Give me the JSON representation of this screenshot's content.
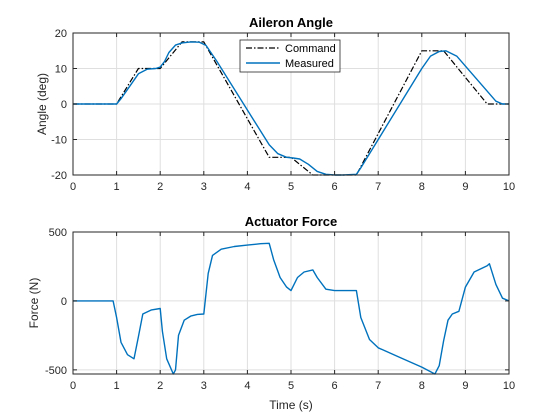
{
  "chart_data": [
    {
      "type": "line",
      "title": "Aileron Angle",
      "xlabel": "",
      "ylabel": "Angle (deg)",
      "xlim": [
        0,
        10
      ],
      "ylim": [
        -20,
        20
      ],
      "xticks": [
        "0",
        "1",
        "2",
        "3",
        "4",
        "5",
        "6",
        "7",
        "8",
        "9",
        "10"
      ],
      "yticks": [
        "-20",
        "-10",
        "0",
        "10",
        "20"
      ],
      "grid": true,
      "legend": "top-center",
      "series": [
        {
          "name": "Command",
          "style": "dashdot",
          "color": "#000000",
          "x": [
            0,
            1,
            1.5,
            2,
            2.5,
            3,
            4.5,
            5,
            5.5,
            6,
            6.5,
            8,
            8.5,
            9.5,
            10
          ],
          "y": [
            0,
            0,
            10,
            10,
            17.5,
            17.5,
            -15,
            -15,
            -20,
            -20,
            -20,
            15,
            15,
            0,
            0
          ]
        },
        {
          "name": "Measured",
          "style": "solid",
          "color": "#0072BD",
          "x": [
            0,
            1,
            1.1,
            1.3,
            1.5,
            1.7,
            1.9,
            2.0,
            2.1,
            2.2,
            2.35,
            2.5,
            2.7,
            2.9,
            3.05,
            3.3,
            4.5,
            4.7,
            4.9,
            5.05,
            5.2,
            5.4,
            5.6,
            5.8,
            6.0,
            6.2,
            6.5,
            6.6,
            8.0,
            8.2,
            8.4,
            8.55,
            8.8,
            9.7,
            9.85,
            10
          ],
          "y": [
            0,
            0,
            1.5,
            5,
            8.5,
            9.8,
            10,
            10.4,
            12,
            14.5,
            16.6,
            17.2,
            17.5,
            17.4,
            16.5,
            12,
            -11.5,
            -14,
            -15,
            -15.2,
            -15.5,
            -17,
            -19,
            -19.8,
            -20,
            -20,
            -19.8,
            -18,
            10,
            13.5,
            14.8,
            15,
            13.5,
            0.8,
            0,
            0
          ]
        }
      ]
    },
    {
      "type": "line",
      "title": "Actuator Force",
      "xlabel": "Time (s)",
      "ylabel": "Force (N)",
      "xlim": [
        0,
        10
      ],
      "ylim": [
        -530,
        500
      ],
      "xticks": [
        "0",
        "1",
        "2",
        "3",
        "4",
        "5",
        "6",
        "7",
        "8",
        "9",
        "10"
      ],
      "yticks": [
        "-500",
        "0",
        "500"
      ],
      "grid": true,
      "series": [
        {
          "color": "#0072BD",
          "x": [
            0,
            0.92,
            1.0,
            1.1,
            1.25,
            1.4,
            1.5,
            1.6,
            1.8,
            2.0,
            2.05,
            2.15,
            2.3,
            2.35,
            2.42,
            2.55,
            2.7,
            2.85,
            3.0,
            3.1,
            3.2,
            3.4,
            3.7,
            4.0,
            4.3,
            4.5,
            4.6,
            4.75,
            4.9,
            5.0,
            5.15,
            5.3,
            5.5,
            5.6,
            5.8,
            6.0,
            6.5,
            6.6,
            6.8,
            7.0,
            7.5,
            8.0,
            8.3,
            8.4,
            8.5,
            8.6,
            8.7,
            8.85,
            9.0,
            9.2,
            9.5,
            9.55,
            9.7,
            9.85,
            10
          ],
          "y": [
            0,
            0,
            -120,
            -300,
            -390,
            -420,
            -260,
            -95,
            -65,
            -55,
            -220,
            -420,
            -530,
            -500,
            -250,
            -140,
            -110,
            -98,
            -95,
            200,
            330,
            375,
            395,
            405,
            415,
            418,
            300,
            170,
            100,
            75,
            170,
            210,
            225,
            170,
            85,
            75,
            75,
            -120,
            -280,
            -340,
            -410,
            -480,
            -530,
            -470,
            -290,
            -140,
            -95,
            -75,
            100,
            210,
            255,
            270,
            120,
            20,
            0
          ]
        }
      ]
    }
  ]
}
